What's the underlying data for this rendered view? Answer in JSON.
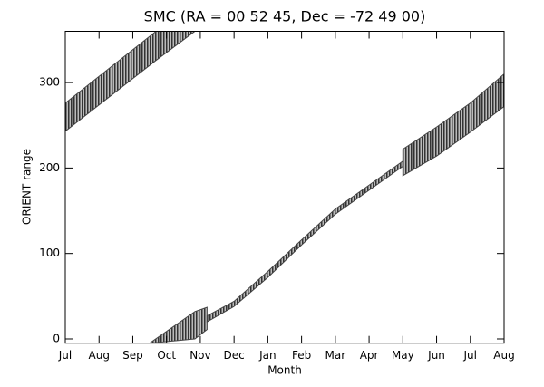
{
  "chart_data": {
    "type": "band",
    "title": "SMC (RA = 00 52 45, Dec = -72 49 00)",
    "xlabel": "Month",
    "ylabel": "ORIENT range",
    "xlim": [
      0,
      13
    ],
    "ylim": [
      -5,
      360
    ],
    "xticks": [
      {
        "value": 0,
        "label": "Jul"
      },
      {
        "value": 1,
        "label": "Aug"
      },
      {
        "value": 2,
        "label": "Sep"
      },
      {
        "value": 3,
        "label": "Oct"
      },
      {
        "value": 4,
        "label": "Nov"
      },
      {
        "value": 5,
        "label": "Dec"
      },
      {
        "value": 6,
        "label": "Jan"
      },
      {
        "value": 7,
        "label": "Feb"
      },
      {
        "value": 8,
        "label": "Mar"
      },
      {
        "value": 9,
        "label": "Apr"
      },
      {
        "value": 10,
        "label": "May"
      },
      {
        "value": 11,
        "label": "Jun"
      },
      {
        "value": 12,
        "label": "Jul"
      },
      {
        "value": 13,
        "label": "Aug"
      }
    ],
    "yticks": [
      0,
      100,
      200,
      300
    ],
    "color": "#444444",
    "bands": [
      {
        "x": [
          0,
          2.69,
          3.84
        ],
        "low": [
          243,
          326,
          360
        ],
        "high": [
          276,
          360,
          360
        ]
      },
      {
        "x": [
          2.5,
          3.84,
          4.2
        ],
        "low": [
          -5,
          0,
          11
        ],
        "high": [
          -5,
          32,
          37
        ]
      },
      {
        "x": [
          4.2,
          5,
          6,
          7,
          8,
          9,
          10
        ],
        "low": [
          20,
          38,
          72,
          110,
          146,
          174,
          202
        ],
        "high": [
          27,
          44,
          79,
          116,
          152,
          180,
          208
        ]
      },
      {
        "x": [
          10,
          11,
          12,
          13
        ],
        "low": [
          191,
          214,
          242,
          272
        ],
        "high": [
          222,
          248,
          276,
          310
        ]
      }
    ]
  }
}
